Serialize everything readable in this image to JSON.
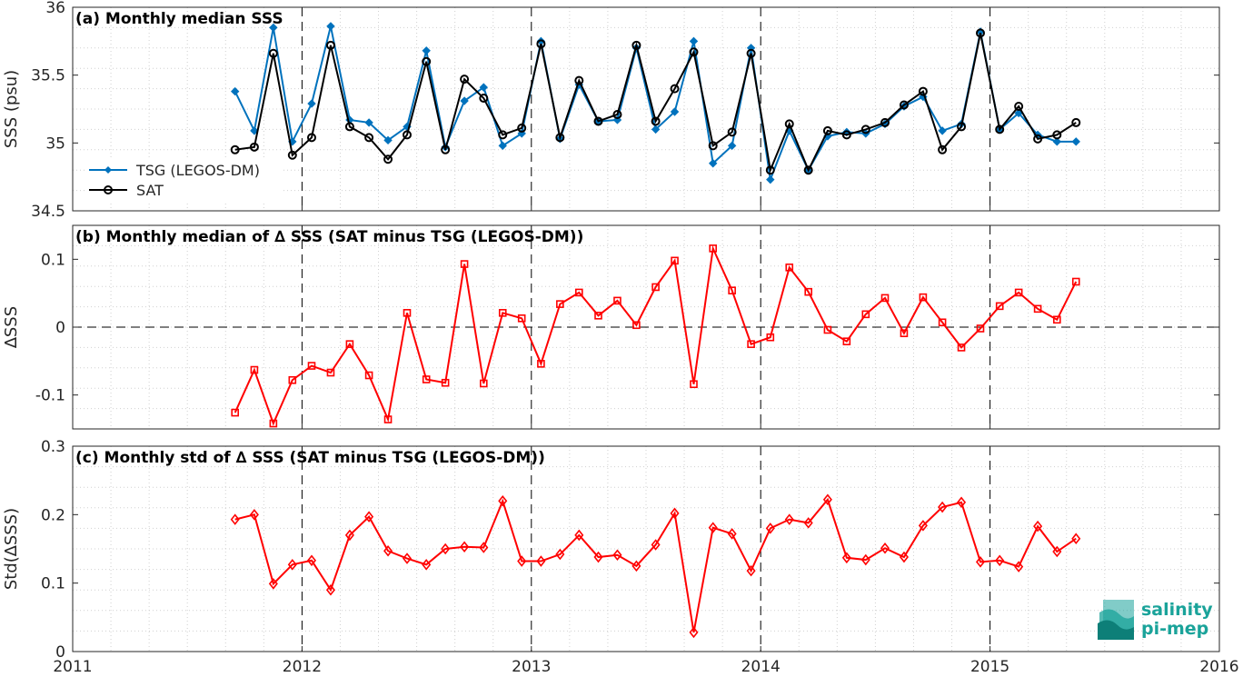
{
  "chart_data": [
    {
      "type": "line",
      "title": "(a) Monthly median SSS",
      "xlabel": "",
      "ylabel": "SSS (psu)",
      "xlim": [
        2011,
        2016
      ],
      "ylim": [
        34.5,
        36
      ],
      "yticks": [
        "34.5",
        "35",
        "35.5",
        "36"
      ],
      "grid": true,
      "legend_position": "bottom-left",
      "x": [
        2011.708,
        2011.792,
        2011.875,
        2011.958,
        2012.042,
        2012.125,
        2012.208,
        2012.292,
        2012.375,
        2012.458,
        2012.542,
        2012.625,
        2012.708,
        2012.792,
        2012.875,
        2012.958,
        2013.042,
        2013.125,
        2013.208,
        2013.292,
        2013.375,
        2013.458,
        2013.542,
        2013.625,
        2013.708,
        2013.792,
        2013.875,
        2013.958,
        2014.042,
        2014.125,
        2014.208,
        2014.292,
        2014.375,
        2014.458,
        2014.542,
        2014.625,
        2014.708,
        2014.792,
        2014.875,
        2014.958,
        2015.042,
        2015.125,
        2015.208,
        2015.292,
        2015.375
      ],
      "series": [
        {
          "name": "TSG (LEGOS-DM)",
          "color": "#0072bd",
          "marker": "diamond",
          "values": [
            35.38,
            35.09,
            35.85,
            35.01,
            35.29,
            35.86,
            35.17,
            35.15,
            35.02,
            35.12,
            35.68,
            34.97,
            35.31,
            35.41,
            34.98,
            35.07,
            35.75,
            35.03,
            35.43,
            35.16,
            35.17,
            35.7,
            35.1,
            35.23,
            35.75,
            34.85,
            34.98,
            35.7,
            34.73,
            35.09,
            34.8,
            35.05,
            35.08,
            35.07,
            35.14,
            35.27,
            35.34,
            35.09,
            35.14,
            35.82,
            35.1,
            35.22,
            35.06,
            35.01,
            35.01
          ]
        },
        {
          "name": "SAT",
          "color": "#000000",
          "marker": "circle",
          "values": [
            34.95,
            34.97,
            35.66,
            34.91,
            35.04,
            35.72,
            35.12,
            35.04,
            34.88,
            35.06,
            35.6,
            34.95,
            35.47,
            35.33,
            35.06,
            35.11,
            35.73,
            35.04,
            35.46,
            35.16,
            35.21,
            35.72,
            35.16,
            35.4,
            35.67,
            34.98,
            35.08,
            35.66,
            34.8,
            35.14,
            34.8,
            35.09,
            35.06,
            35.1,
            35.15,
            35.28,
            35.38,
            34.95,
            35.12,
            35.81,
            35.1,
            35.27,
            35.03,
            35.06,
            35.15
          ]
        }
      ]
    },
    {
      "type": "line",
      "title": "(b) Monthly median of ∆ SSS (SAT minus TSG (LEGOS-DM))",
      "xlabel": "",
      "ylabel": "∆SSS",
      "xlim": [
        2011,
        2016
      ],
      "ylim": [
        -0.15,
        0.15
      ],
      "yticks": [
        "-0.1",
        "0",
        "0.1"
      ],
      "grid": true,
      "x": [
        2011.708,
        2011.792,
        2011.875,
        2011.958,
        2012.042,
        2012.125,
        2012.208,
        2012.292,
        2012.375,
        2012.458,
        2012.542,
        2012.625,
        2012.708,
        2012.792,
        2012.875,
        2012.958,
        2013.042,
        2013.125,
        2013.208,
        2013.292,
        2013.375,
        2013.458,
        2013.542,
        2013.625,
        2013.708,
        2013.792,
        2013.875,
        2013.958,
        2014.042,
        2014.125,
        2014.208,
        2014.292,
        2014.375,
        2014.458,
        2014.542,
        2014.625,
        2014.708,
        2014.792,
        2014.875,
        2014.958,
        2015.042,
        2015.125,
        2015.208,
        2015.292,
        2015.375
      ],
      "series": [
        {
          "name": "",
          "color": "#ff0000",
          "marker": "square",
          "values": [
            -0.126,
            -0.063,
            -0.142,
            -0.078,
            -0.057,
            -0.067,
            -0.025,
            -0.071,
            -0.136,
            0.021,
            -0.077,
            -0.082,
            0.093,
            -0.083,
            0.021,
            0.013,
            -0.054,
            0.034,
            0.051,
            0.017,
            0.039,
            0.003,
            0.059,
            0.098,
            -0.084,
            0.116,
            0.054,
            -0.025,
            -0.015,
            0.088,
            0.052,
            -0.004,
            -0.021,
            0.019,
            0.043,
            -0.009,
            0.044,
            0.007,
            -0.03,
            -0.002,
            0.031,
            0.051,
            0.027,
            0.011,
            0.067
          ]
        }
      ]
    },
    {
      "type": "line",
      "title": "(c) Monthly std of ∆ SSS (SAT minus TSG (LEGOS-DM))",
      "xlabel": "",
      "ylabel": "Std(∆SSS)",
      "xlim": [
        2011,
        2016
      ],
      "ylim": [
        0,
        0.3
      ],
      "yticks": [
        "0",
        "0.1",
        "0.2",
        "0.3"
      ],
      "xticks": [
        "2011",
        "2012",
        "2013",
        "2014",
        "2015",
        "2016"
      ],
      "grid": true,
      "x": [
        2011.708,
        2011.792,
        2011.875,
        2011.958,
        2012.042,
        2012.125,
        2012.208,
        2012.292,
        2012.375,
        2012.458,
        2012.542,
        2012.625,
        2012.708,
        2012.792,
        2012.875,
        2012.958,
        2013.042,
        2013.125,
        2013.208,
        2013.292,
        2013.375,
        2013.458,
        2013.542,
        2013.625,
        2013.708,
        2013.792,
        2013.875,
        2013.958,
        2014.042,
        2014.125,
        2014.208,
        2014.292,
        2014.375,
        2014.458,
        2014.542,
        2014.625,
        2014.708,
        2014.792,
        2014.875,
        2014.958,
        2015.042,
        2015.125,
        2015.208,
        2015.292,
        2015.375
      ],
      "series": [
        {
          "name": "",
          "color": "#ff0000",
          "marker": "diamond",
          "values": [
            0.193,
            0.2,
            0.099,
            0.127,
            0.133,
            0.09,
            0.17,
            0.197,
            0.147,
            0.136,
            0.127,
            0.15,
            0.153,
            0.152,
            0.22,
            0.132,
            0.132,
            0.142,
            0.17,
            0.138,
            0.141,
            0.125,
            0.156,
            0.202,
            0.028,
            0.181,
            0.172,
            0.118,
            0.18,
            0.193,
            0.188,
            0.222,
            0.137,
            0.134,
            0.151,
            0.138,
            0.184,
            0.211,
            0.218,
            0.131,
            0.133,
            0.124,
            0.183,
            0.146,
            0.165
          ]
        }
      ]
    }
  ],
  "logo": {
    "line1": "salinity",
    "line2": "pi-mep",
    "color": "#1aa39a"
  }
}
